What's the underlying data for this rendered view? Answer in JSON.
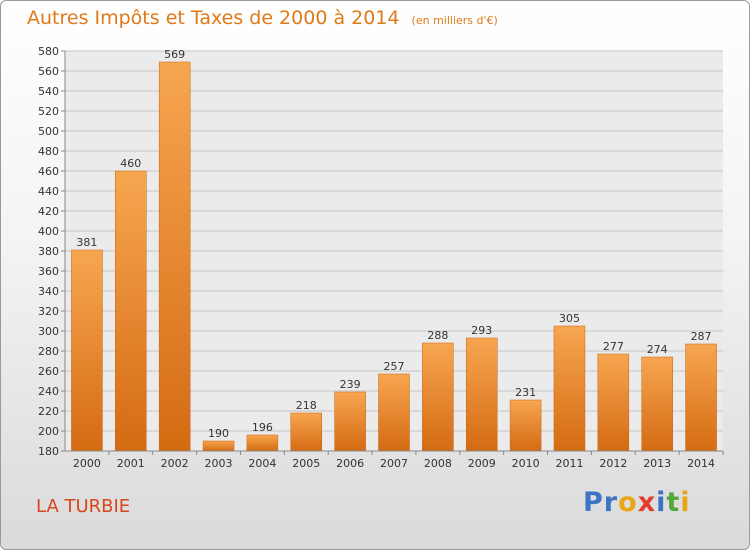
{
  "header": {
    "title": "Autres Impôts et Taxes de 2000 à 2014",
    "unit": "(en milliers d'€)"
  },
  "footer": {
    "city": "LA TURBIE",
    "logo": [
      "P",
      "r",
      "o",
      "x",
      "i",
      "t",
      "i"
    ]
  },
  "colors": {
    "title": "#e07a18",
    "city": "#d8461c",
    "bar_light": "#f7a650",
    "bar_dark": "#d46b13",
    "logo": [
      "#3b74c4",
      "#3b74c4",
      "#e8a617",
      "#e53a2f",
      "#3b74c4",
      "#54a83b",
      "#e8a617"
    ]
  },
  "chart_data": {
    "type": "bar",
    "categories": [
      "2000",
      "2001",
      "2002",
      "2003",
      "2004",
      "2005",
      "2006",
      "2007",
      "2008",
      "2009",
      "2010",
      "2011",
      "2012",
      "2013",
      "2014"
    ],
    "values": [
      381,
      460,
      569,
      190,
      196,
      218,
      239,
      257,
      288,
      293,
      231,
      305,
      277,
      274,
      287
    ],
    "value_labels": [
      "381",
      "460",
      "569",
      "190",
      "196",
      "218",
      "239",
      "257",
      "288",
      "293",
      "231",
      "305",
      "277",
      "274",
      "287"
    ],
    "yticks": [
      "180",
      "200",
      "220",
      "240",
      "260",
      "280",
      "300",
      "320",
      "340",
      "360",
      "380",
      "400",
      "420",
      "440",
      "460",
      "480",
      "500",
      "520",
      "540",
      "560",
      "580"
    ],
    "ylim": [
      180,
      580
    ],
    "grid": true
  }
}
